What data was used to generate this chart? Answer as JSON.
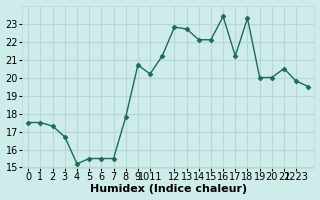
{
  "x": [
    0,
    1,
    2,
    3,
    4,
    5,
    6,
    7,
    8,
    9,
    10,
    11,
    12,
    13,
    14,
    15,
    16,
    17,
    18,
    19,
    20,
    21,
    22,
    23
  ],
  "y": [
    17.5,
    17.5,
    17.3,
    16.7,
    15.2,
    15.5,
    15.5,
    15.5,
    17.8,
    20.7,
    20.2,
    21.2,
    22.8,
    22.7,
    22.1,
    22.1,
    23.4,
    21.2,
    23.3,
    20.0,
    20.0,
    20.5,
    19.8,
    19.5
  ],
  "line_color": "#1a6b5a",
  "marker": "D",
  "marker_size": 2.5,
  "linewidth": 1.0,
  "xlabel": "Humidex (Indice chaleur)",
  "ylim": [
    15,
    24
  ],
  "xlim": [
    -0.5,
    23.5
  ],
  "yticks": [
    15,
    16,
    17,
    18,
    19,
    20,
    21,
    22,
    23
  ],
  "xtick_labels": [
    "0",
    "1",
    "2",
    "3",
    "4",
    "5",
    "6",
    "7",
    "8",
    "9",
    "1011",
    "12",
    "13",
    "14",
    "15",
    "16",
    "17",
    "18",
    "19",
    "20",
    "21",
    "2223"
  ],
  "xtick_positions": [
    0,
    1,
    2,
    3,
    4,
    5,
    6,
    7,
    8,
    9,
    10,
    12,
    13,
    14,
    15,
    16,
    17,
    18,
    19,
    20,
    21,
    22
  ],
  "bg_color": "#ceecea",
  "grid_color": "#b8d8d4",
  "border_color": "#c0d8d4",
  "xlabel_fontsize": 8,
  "tick_fontsize": 7
}
